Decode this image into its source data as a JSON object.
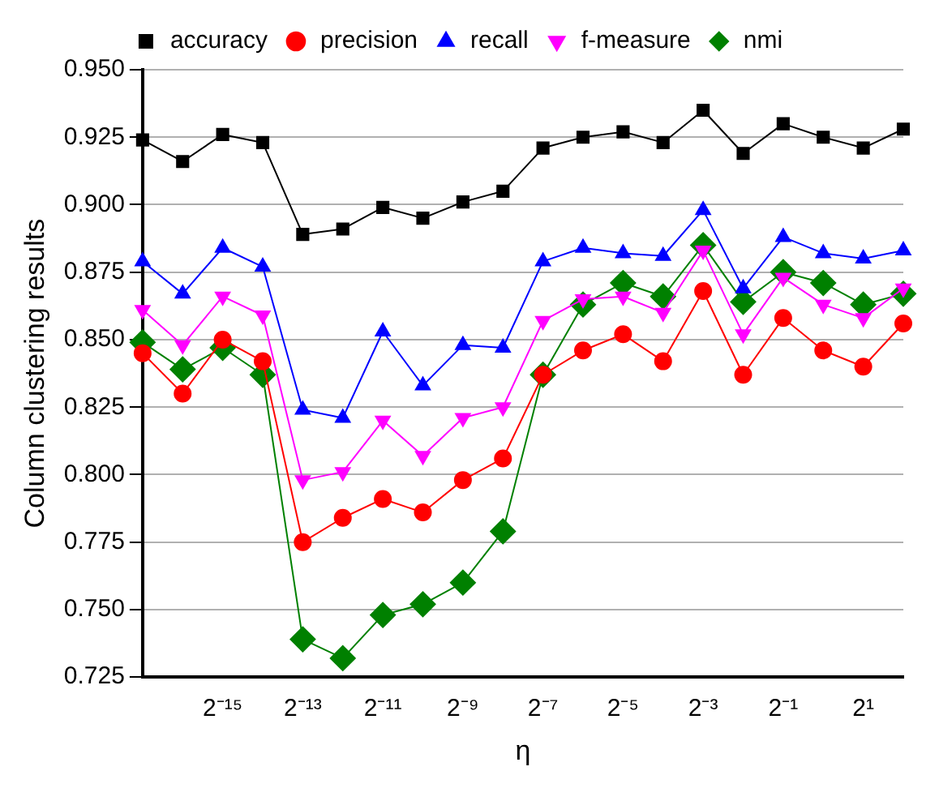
{
  "chart_data": {
    "type": "line",
    "xlabel": "η",
    "ylabel": "Column clustering results",
    "categories": [
      null,
      null,
      "2⁻¹⁵",
      null,
      "2⁻¹³",
      null,
      "2⁻¹¹",
      null,
      "2⁻⁹",
      null,
      "2⁻⁷",
      null,
      "2⁻⁵",
      null,
      "2⁻³",
      null,
      "2⁻¹",
      null,
      "2¹",
      null
    ],
    "series": [
      {
        "name": "accuracy",
        "color": "#000000",
        "marker": "square",
        "values": [
          0.924,
          0.916,
          0.926,
          0.923,
          0.889,
          0.891,
          0.899,
          0.895,
          0.901,
          0.905,
          0.921,
          0.925,
          0.927,
          0.923,
          0.935,
          0.919,
          0.93,
          0.925,
          0.921,
          0.928
        ]
      },
      {
        "name": "precision",
        "color": "#ff0000",
        "marker": "circle",
        "values": [
          0.845,
          0.83,
          0.85,
          0.842,
          0.775,
          0.784,
          0.791,
          0.786,
          0.798,
          0.806,
          0.837,
          0.846,
          0.852,
          0.842,
          0.868,
          0.837,
          0.858,
          0.846,
          0.84,
          0.856
        ]
      },
      {
        "name": "recall",
        "color": "#0000ff",
        "marker": "triangle",
        "values": [
          0.879,
          0.867,
          0.884,
          0.877,
          0.824,
          0.821,
          0.853,
          0.833,
          0.848,
          0.847,
          0.879,
          0.884,
          0.882,
          0.881,
          0.898,
          0.869,
          0.888,
          0.882,
          0.88,
          0.883
        ]
      },
      {
        "name": "f-measure",
        "color": "#ff00ff",
        "marker": "triangle-down",
        "values": [
          0.861,
          0.848,
          0.866,
          0.859,
          0.798,
          0.801,
          0.82,
          0.807,
          0.821,
          0.825,
          0.857,
          0.865,
          0.866,
          0.86,
          0.883,
          0.852,
          0.873,
          0.863,
          0.858,
          0.869
        ]
      },
      {
        "name": "nmi",
        "color": "#008000",
        "marker": "diamond",
        "values": [
          0.849,
          0.839,
          0.847,
          0.837,
          0.739,
          0.732,
          0.748,
          0.752,
          0.76,
          0.779,
          0.837,
          0.863,
          0.871,
          0.866,
          0.885,
          0.864,
          0.875,
          0.871,
          0.863,
          0.867
        ]
      }
    ],
    "ylim": [
      0.725,
      0.95
    ],
    "yticks": [
      {
        "value": 0.725,
        "label": "0.725"
      },
      {
        "value": 0.75,
        "label": "0.750"
      },
      {
        "value": 0.775,
        "label": "0.775"
      },
      {
        "value": 0.8,
        "label": "0.800"
      },
      {
        "value": 0.825,
        "label": "0.825"
      },
      {
        "value": 0.85,
        "label": "0.850"
      },
      {
        "value": 0.875,
        "label": "0.875"
      },
      {
        "value": 0.9,
        "label": "0.900"
      },
      {
        "value": 0.925,
        "label": "0.925"
      },
      {
        "value": 0.95,
        "label": "0.950"
      }
    ],
    "grid": "y",
    "legend": "top",
    "line_style": "solid"
  }
}
